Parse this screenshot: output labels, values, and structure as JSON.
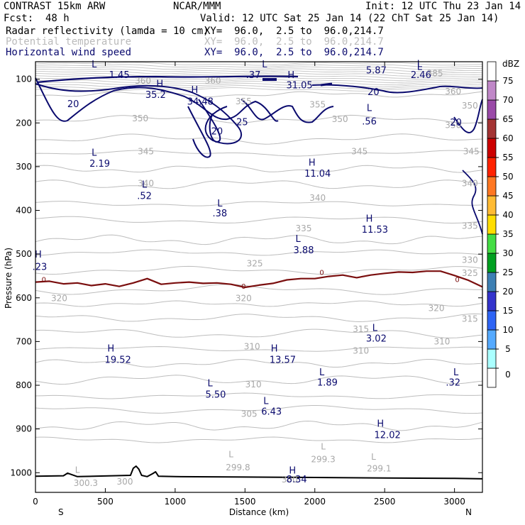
{
  "header": {
    "model": "CONTRAST 15km ARW",
    "org": "NCAR/MMM",
    "init": "Init: 12 UTC Thu 23 Jan 14",
    "fcst_label": "Fcst:",
    "fcst_value": "48 h",
    "valid": "Valid: 12 UTC Sat 25 Jan 14 (22 ChT Sat 25 Jan 14)"
  },
  "fields": [
    {
      "name": "Radar reflectivity (lamda = 10 cm)",
      "xy": "XY=  96.0,  2.5 to  96.0,214.7",
      "color": "#000000"
    },
    {
      "name": "Potential temperature",
      "xy": "XY=  96.0,  2.5 to  96.0,214.7",
      "color": "#bbbbbb"
    },
    {
      "name": "Horizontal wind speed",
      "xy": "XY=  96.0,  2.5 to  96.0,214.7",
      "color": "#0a0a6e"
    }
  ],
  "chart_data": {
    "type": "cross-section",
    "xlabel": "Distance (km)",
    "ylabel": "Pressure (hPa)",
    "xlim": [
      0,
      3200
    ],
    "ylim": [
      1045,
      60
    ],
    "x_ticks": [
      "0",
      "500",
      "1000",
      "1500",
      "2000",
      "2500",
      "3000"
    ],
    "y_ticks": [
      "100",
      "200",
      "300",
      "400",
      "500",
      "600",
      "700",
      "800",
      "900",
      "1000"
    ],
    "x_tick_values": [
      0,
      500,
      1000,
      1500,
      2000,
      2500,
      3000
    ],
    "y_tick_values": [
      100,
      200,
      300,
      400,
      500,
      600,
      700,
      800,
      900,
      1000
    ],
    "end_labels": {
      "left": "S",
      "right": "N"
    },
    "colorbar": {
      "unit": "dBZ",
      "levels": [
        "0",
        "5",
        "10",
        "15",
        "20",
        "25",
        "30",
        "35",
        "40",
        "45",
        "50",
        "55",
        "60",
        "65",
        "70",
        "75"
      ],
      "colors": [
        "#ffffff",
        "#aaffff",
        "#55aaff",
        "#2e64f5",
        "#3333cc",
        "#3d7fb3",
        "#00a020",
        "#44dd44",
        "#ffdd00",
        "#ffbb33",
        "#ff7722",
        "#ff2200",
        "#cc0000",
        "#a33333",
        "#9a4aa8",
        "#c088c8",
        "#ffffff"
      ]
    },
    "theta_labels": [
      {
        "text": "385",
        "x": 2860,
        "p": 93
      },
      {
        "text": "360",
        "x": 770,
        "p": 110
      },
      {
        "text": "360",
        "x": 1270,
        "p": 110
      },
      {
        "text": "355",
        "x": 1490,
        "p": 157
      },
      {
        "text": "355",
        "x": 2020,
        "p": 165
      },
      {
        "text": "360",
        "x": 2990,
        "p": 135
      },
      {
        "text": "350",
        "x": 3110,
        "p": 167
      },
      {
        "text": "350",
        "x": 2180,
        "p": 198
      },
      {
        "text": "350",
        "x": 750,
        "p": 196
      },
      {
        "text": "350",
        "x": 2990,
        "p": 212
      },
      {
        "text": "345",
        "x": 790,
        "p": 272
      },
      {
        "text": "345",
        "x": 2320,
        "p": 272
      },
      {
        "text": "345",
        "x": 3120,
        "p": 272
      },
      {
        "text": "340",
        "x": 790,
        "p": 345
      },
      {
        "text": "340",
        "x": 2020,
        "p": 378
      },
      {
        "text": "340",
        "x": 3110,
        "p": 345
      },
      {
        "text": "335",
        "x": 1920,
        "p": 448
      },
      {
        "text": "335",
        "x": 3110,
        "p": 442
      },
      {
        "text": "330",
        "x": 3110,
        "p": 520
      },
      {
        "text": "325",
        "x": 1570,
        "p": 528
      },
      {
        "text": "325",
        "x": 3110,
        "p": 550
      },
      {
        "text": "320",
        "x": 170,
        "p": 608
      },
      {
        "text": "320",
        "x": 1490,
        "p": 608
      },
      {
        "text": "320",
        "x": 2870,
        "p": 630
      },
      {
        "text": "315",
        "x": 3110,
        "p": 655
      },
      {
        "text": "315",
        "x": 2330,
        "p": 678
      },
      {
        "text": "310",
        "x": 2330,
        "p": 728
      },
      {
        "text": "310",
        "x": 2910,
        "p": 707
      },
      {
        "text": "310",
        "x": 1550,
        "p": 718
      },
      {
        "text": "310",
        "x": 1560,
        "p": 805
      },
      {
        "text": "305",
        "x": 1530,
        "p": 872
      },
      {
        "text": "L",
        "x": 2060,
        "p": 947
      },
      {
        "text": "299.3",
        "x": 2060,
        "p": 976
      },
      {
        "text": "L",
        "x": 1400,
        "p": 965
      },
      {
        "text": "299.8",
        "x": 1450,
        "p": 995
      },
      {
        "text": "L",
        "x": 2420,
        "p": 970
      },
      {
        "text": "299.1",
        "x": 2460,
        "p": 997
      },
      {
        "text": "L",
        "x": 300,
        "p": 1000
      },
      {
        "text": "300.3",
        "x": 360,
        "p": 1030
      },
      {
        "text": "300",
        "x": 640,
        "p": 1027
      },
      {
        "text": "300",
        "x": 1820,
        "p": 1022
      }
    ],
    "wind_labels": [
      {
        "text": "L",
        "x": 420,
        "p": 73
      },
      {
        "text": "1.45",
        "x": 600,
        "p": 97
      },
      {
        "text": "L",
        "x": 1640,
        "p": 73
      },
      {
        "text": ".37",
        "x": 1560,
        "p": 97
      },
      {
        "text": "L",
        "x": 2750,
        "p": 72
      },
      {
        "text": "5.87",
        "x": 2440,
        "p": 87
      },
      {
        "text": "L",
        "x": 2750,
        "p": 79
      },
      {
        "text": "2.46",
        "x": 2760,
        "p": 97
      },
      {
        "text": "H",
        "x": 1830,
        "p": 97
      },
      {
        "text": "31.05",
        "x": 1890,
        "p": 121
      },
      {
        "text": "H",
        "x": 890,
        "p": 118
      },
      {
        "text": "35.2",
        "x": 860,
        "p": 143
      },
      {
        "text": "H",
        "x": 1140,
        "p": 131
      },
      {
        "text": "34.48",
        "x": 1180,
        "p": 158
      },
      {
        "text": "20",
        "x": 270,
        "p": 164
      },
      {
        "text": "20",
        "x": 2420,
        "p": 136
      },
      {
        "text": "25",
        "x": 1480,
        "p": 205
      },
      {
        "text": "20",
        "x": 1300,
        "p": 226
      },
      {
        "text": "20",
        "x": 3010,
        "p": 206
      },
      {
        "text": "L",
        "x": 2390,
        "p": 173
      },
      {
        "text": ".56",
        "x": 2390,
        "p": 204
      },
      {
        "text": "L",
        "x": 420,
        "p": 275
      },
      {
        "text": "2.19",
        "x": 460,
        "p": 300
      },
      {
        "text": "L",
        "x": 780,
        "p": 348
      },
      {
        "text": ".52",
        "x": 780,
        "p": 374
      },
      {
        "text": "L",
        "x": 1320,
        "p": 391
      },
      {
        "text": ".38",
        "x": 1320,
        "p": 414
      },
      {
        "text": "H",
        "x": 1980,
        "p": 298
      },
      {
        "text": "11.04",
        "x": 2020,
        "p": 323
      },
      {
        "text": "H",
        "x": 2390,
        "p": 426
      },
      {
        "text": "11.53",
        "x": 2430,
        "p": 451
      },
      {
        "text": "L",
        "x": 1880,
        "p": 472
      },
      {
        "text": "3.88",
        "x": 1920,
        "p": 498
      },
      {
        "text": "H",
        "x": 20,
        "p": 508
      },
      {
        "text": ".23",
        "x": 30,
        "p": 536
      },
      {
        "text": "L",
        "x": 2430,
        "p": 676
      },
      {
        "text": "3.02",
        "x": 2440,
        "p": 700
      },
      {
        "text": "H",
        "x": 540,
        "p": 723
      },
      {
        "text": "19.52",
        "x": 590,
        "p": 749
      },
      {
        "text": "H",
        "x": 1710,
        "p": 723
      },
      {
        "text": "13.57",
        "x": 1770,
        "p": 749
      },
      {
        "text": "L",
        "x": 2050,
        "p": 777
      },
      {
        "text": "1.89",
        "x": 2090,
        "p": 801
      },
      {
        "text": "L",
        "x": 3010,
        "p": 777
      },
      {
        "text": ".32",
        "x": 2990,
        "p": 801
      },
      {
        "text": "L",
        "x": 1250,
        "p": 802
      },
      {
        "text": "5.50",
        "x": 1290,
        "p": 828
      },
      {
        "text": "L",
        "x": 1650,
        "p": 843
      },
      {
        "text": "6.43",
        "x": 1690,
        "p": 867
      },
      {
        "text": "H",
        "x": 2470,
        "p": 895
      },
      {
        "text": "12.02",
        "x": 2520,
        "p": 921
      },
      {
        "text": "H",
        "x": 1840,
        "p": 1002
      },
      {
        "text": "8.34",
        "x": 1870,
        "p": 1022
      }
    ],
    "freezing_labels": [
      {
        "text": "0",
        "x": 60,
        "p": 564
      },
      {
        "text": "0",
        "x": 1490,
        "p": 579
      },
      {
        "text": "0",
        "x": 2050,
        "p": 548
      },
      {
        "text": "0",
        "x": 3020,
        "p": 564
      }
    ],
    "freezing_level": {
      "x": [
        0,
        100,
        200,
        300,
        400,
        500,
        600,
        700,
        800,
        900,
        1000,
        1100,
        1200,
        1300,
        1400,
        1500,
        1600,
        1700,
        1800,
        1900,
        2000,
        2100,
        2200,
        2300,
        2400,
        2500,
        2600,
        2700,
        2800,
        2900,
        3000,
        3100,
        3200
      ],
      "p": [
        564,
        562,
        568,
        566,
        572,
        568,
        574,
        566,
        556,
        569,
        566,
        564,
        567,
        566,
        569,
        576,
        571,
        567,
        559,
        556,
        556,
        551,
        548,
        554,
        548,
        544,
        541,
        542,
        539,
        539,
        549,
        560,
        575
      ]
    },
    "surface": {
      "x": [
        0,
        200,
        230,
        300,
        680,
        700,
        720,
        740,
        760,
        800,
        840,
        860,
        880,
        1000,
        1500,
        2000,
        2500,
        3000,
        3200
      ],
      "p": [
        1008,
        1007,
        1001,
        1009,
        1006,
        990,
        985,
        992,
        1006,
        1009,
        1002,
        998,
        1008,
        1009,
        1010,
        1011,
        1012,
        1013,
        1014
      ]
    }
  }
}
